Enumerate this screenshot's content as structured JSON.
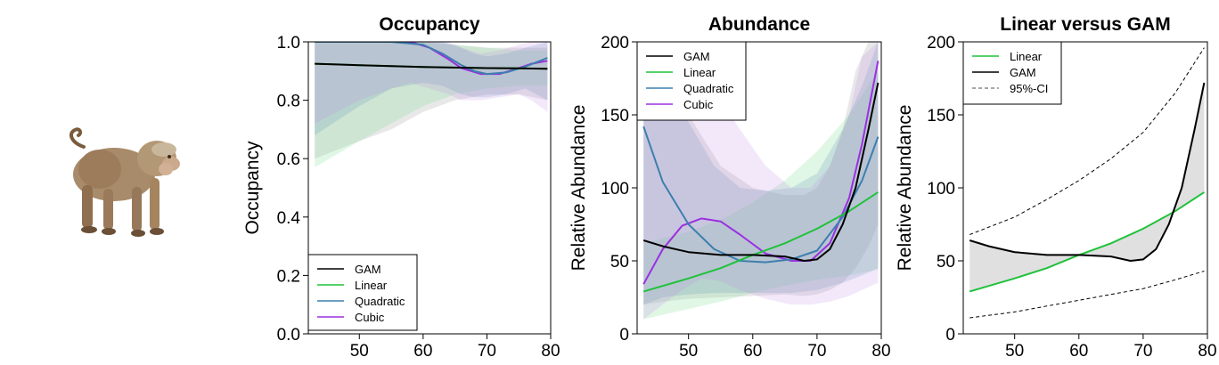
{
  "colors": {
    "GAM": "#000000",
    "Linear": "#1fc23a",
    "Quadratic": "#3d7fae",
    "Cubic": "#9b30e0"
  },
  "image": {
    "subject": "macaque-illustration"
  },
  "chart_data": [
    {
      "type": "line",
      "title": "Occupancy",
      "xlabel": "",
      "ylabel": "Occupancy",
      "xlim": [
        42,
        80
      ],
      "ylim": [
        0,
        1
      ],
      "xticks": [
        50,
        60,
        70,
        80
      ],
      "yticks": [
        "0.0",
        "0.2",
        "0.4",
        "0.6",
        "0.8",
        "1.0"
      ],
      "legend_position": "bottom-left",
      "series": [
        {
          "name": "GAM",
          "x": [
            43,
            50,
            55,
            60,
            65,
            70,
            75,
            79.5
          ],
          "y": [
            0.925,
            0.92,
            0.917,
            0.914,
            0.912,
            0.91,
            0.909,
            0.908
          ],
          "lower": [
            0.6,
            0.66,
            0.7,
            0.76,
            0.8,
            0.82,
            0.82,
            0.8
          ],
          "upper": [
            1.0,
            1.0,
            1.0,
            1.0,
            0.99,
            0.98,
            0.98,
            0.98
          ]
        },
        {
          "name": "Linear",
          "x": [
            43,
            50,
            55,
            60,
            65,
            70,
            75,
            79.5
          ],
          "y": [
            0.925,
            0.92,
            0.917,
            0.914,
            0.912,
            0.91,
            0.909,
            0.908
          ],
          "lower": [
            0.57,
            0.66,
            0.72,
            0.78,
            0.82,
            0.84,
            0.85,
            0.85
          ],
          "upper": [
            1.0,
            1.0,
            1.0,
            1.0,
            0.99,
            0.98,
            0.97,
            0.97
          ]
        },
        {
          "name": "Quadratic",
          "x": [
            43,
            50,
            55,
            60,
            63,
            66,
            68,
            70,
            73,
            76,
            79.5
          ],
          "y": [
            1.0,
            1.0,
            1.0,
            0.99,
            0.96,
            0.92,
            0.9,
            0.89,
            0.895,
            0.915,
            0.945
          ],
          "lower": [
            0.68,
            0.78,
            0.84,
            0.86,
            0.85,
            0.82,
            0.81,
            0.81,
            0.82,
            0.84,
            0.8
          ],
          "upper": [
            1.0,
            1.0,
            1.0,
            1.0,
            1.0,
            0.98,
            0.96,
            0.95,
            0.96,
            0.98,
            1.0
          ]
        },
        {
          "name": "Cubic",
          "x": [
            43,
            50,
            55,
            58,
            61,
            64,
            66,
            69,
            72,
            75,
            77,
            79.5
          ],
          "y": [
            1.0,
            1.0,
            1.0,
            1.0,
            0.98,
            0.94,
            0.91,
            0.89,
            0.89,
            0.91,
            0.925,
            0.935
          ],
          "lower": [
            0.72,
            0.8,
            0.84,
            0.86,
            0.84,
            0.82,
            0.8,
            0.8,
            0.81,
            0.82,
            0.8,
            0.76
          ],
          "upper": [
            1.0,
            1.0,
            1.0,
            1.0,
            1.0,
            1.0,
            0.98,
            0.96,
            0.97,
            0.99,
            1.0,
            1.0
          ]
        }
      ]
    },
    {
      "type": "line",
      "title": "Abundance",
      "xlabel": "",
      "ylabel": "Relative Abundance",
      "xlim": [
        42,
        80
      ],
      "ylim": [
        0,
        200
      ],
      "xticks": [
        50,
        60,
        70,
        80
      ],
      "yticks": [
        "0",
        "50",
        "100",
        "150",
        "200"
      ],
      "legend_position": "top-left",
      "series": [
        {
          "name": "GAM",
          "x": [
            43,
            46,
            50,
            55,
            60,
            65,
            68,
            70,
            72,
            74,
            76,
            78,
            79.5
          ],
          "y": [
            64,
            60,
            56,
            54,
            54,
            53,
            50,
            51,
            58,
            75,
            100,
            140,
            172
          ],
          "lower": [
            20,
            22,
            24,
            25,
            26,
            27,
            26,
            27,
            30,
            35,
            45,
            60,
            75
          ],
          "upper": [
            200,
            200,
            150,
            115,
            100,
            95,
            95,
            100,
            115,
            140,
            180,
            200,
            200
          ]
        },
        {
          "name": "Linear",
          "x": [
            43,
            50,
            55,
            60,
            65,
            70,
            75,
            79.5
          ],
          "y": [
            29,
            38,
            45,
            54,
            62,
            72,
            84,
            97
          ],
          "lower": [
            10,
            17,
            22,
            28,
            33,
            37,
            40,
            44
          ],
          "upper": [
            62,
            70,
            78,
            90,
            105,
            125,
            150,
            180
          ]
        },
        {
          "name": "Quadratic",
          "x": [
            43,
            46,
            50,
            54,
            58,
            62,
            66,
            70,
            74,
            77,
            79.5
          ],
          "y": [
            142,
            104,
            75,
            58,
            50,
            49,
            51,
            57,
            80,
            105,
            135
          ],
          "lower": [
            20,
            25,
            27,
            28,
            28,
            28,
            28,
            30,
            35,
            40,
            45
          ],
          "upper": [
            200,
            180,
            145,
            115,
            100,
            98,
            100,
            110,
            140,
            170,
            200
          ]
        },
        {
          "name": "Cubic",
          "x": [
            43,
            46,
            49,
            52,
            55,
            58,
            62,
            66,
            69,
            72,
            75,
            77,
            79.5
          ],
          "y": [
            34,
            58,
            74,
            79,
            77,
            68,
            55,
            50,
            50,
            62,
            93,
            130,
            187
          ],
          "lower": [
            10,
            20,
            30,
            38,
            36,
            30,
            24,
            20,
            20,
            22,
            26,
            30,
            35
          ],
          "upper": [
            160,
            170,
            180,
            175,
            160,
            140,
            115,
            100,
            100,
            115,
            150,
            190,
            200
          ]
        }
      ]
    },
    {
      "type": "line",
      "title": "Linear versus GAM",
      "xlabel": "",
      "ylabel": "Relative Abundance",
      "xlim": [
        42,
        80
      ],
      "ylim": [
        0,
        200
      ],
      "xticks": [
        50,
        60,
        70,
        80
      ],
      "yticks": [
        "0",
        "50",
        "100",
        "150",
        "200"
      ],
      "legend_position": "top-left",
      "series": [
        {
          "name": "Linear",
          "x": [
            43,
            50,
            55,
            60,
            65,
            70,
            75,
            79.5
          ],
          "y": [
            29,
            38,
            45,
            54,
            62,
            72,
            84,
            97
          ]
        },
        {
          "name": "GAM",
          "x": [
            43,
            46,
            50,
            55,
            60,
            65,
            68,
            70,
            72,
            74,
            76,
            78,
            79.5
          ],
          "y": [
            64,
            60,
            56,
            54,
            54,
            53,
            50,
            51,
            58,
            75,
            100,
            140,
            172
          ]
        },
        {
          "name": "95%-CI",
          "x": [
            43,
            50,
            55,
            60,
            65,
            70,
            75,
            79.5
          ],
          "lower": [
            11,
            15,
            19,
            23,
            27,
            31,
            37,
            43
          ],
          "upper": [
            68,
            80,
            92,
            105,
            120,
            138,
            165,
            196
          ]
        }
      ]
    }
  ]
}
